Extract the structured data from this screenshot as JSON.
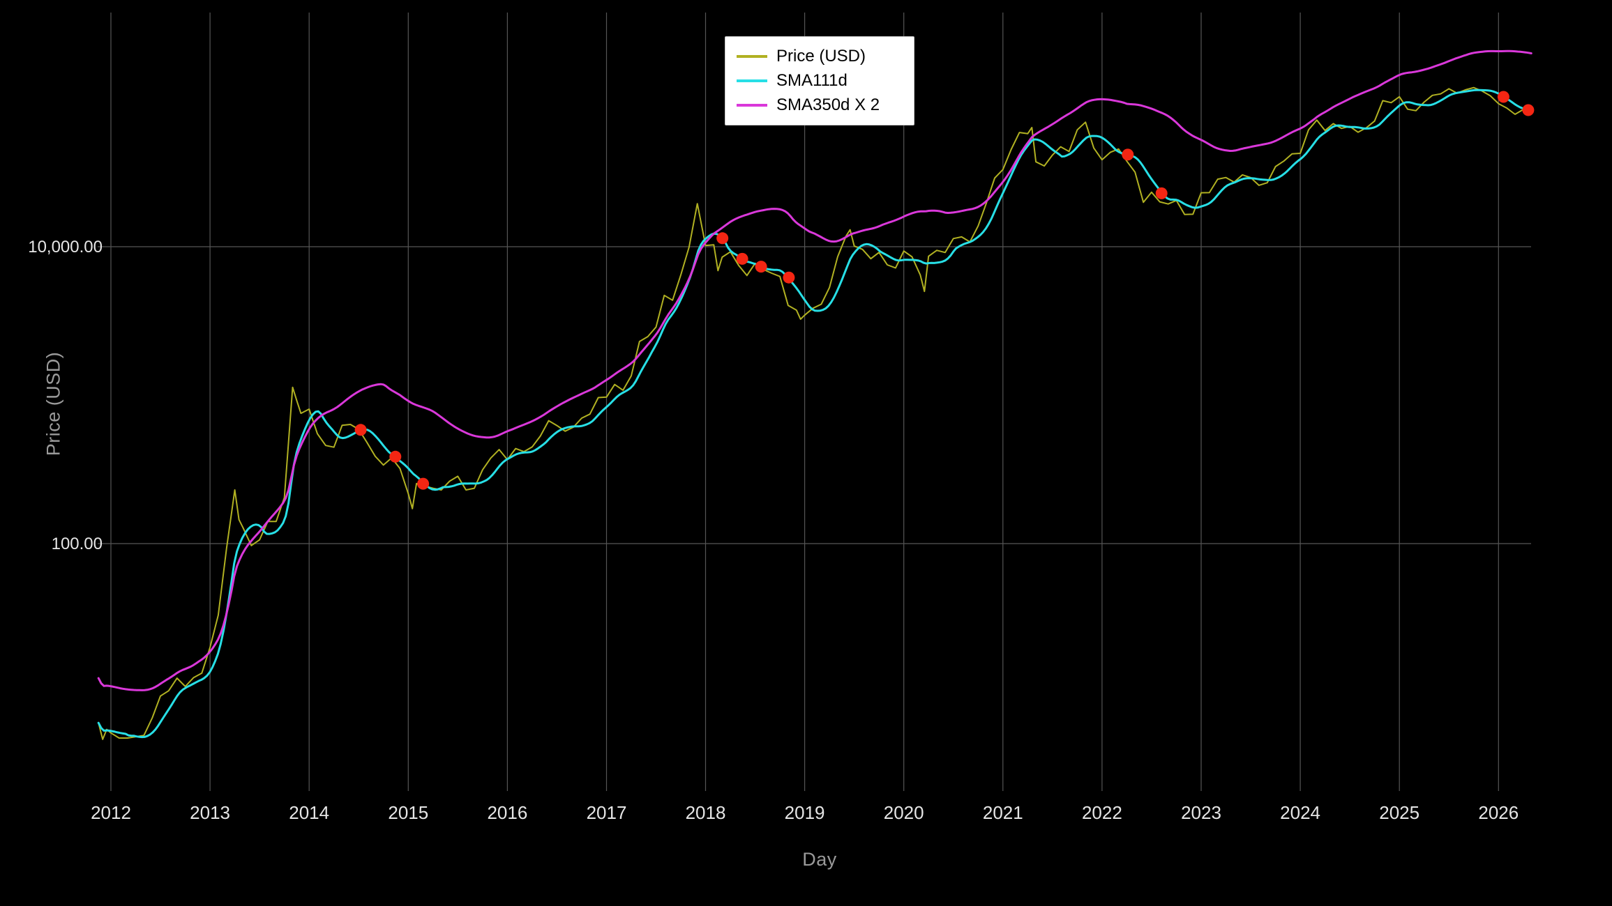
{
  "figure": {
    "background": "#000000"
  },
  "chart_data": {
    "type": "line",
    "title": "",
    "x_axis": {
      "label": "Day",
      "ticks": [
        2012,
        2013,
        2014,
        2015,
        2016,
        2017,
        2018,
        2019,
        2020,
        2021,
        2022,
        2023,
        2024,
        2025,
        2026
      ],
      "range": [
        2011.85,
        2026.5
      ]
    },
    "y_axis": {
      "label": "Price (USD)",
      "scale": "log",
      "ticks": [
        {
          "value": 10000,
          "label": "10,000.00"
        },
        {
          "value": 100,
          "label": "100.00"
        }
      ],
      "range": [
        2,
        400000
      ]
    },
    "style": {
      "grid_color": "#565656",
      "tick_color": "#e6e6e6",
      "axis_label_color": "#9a9a9a",
      "legend_background": "#ffffff",
      "legend_border": "#c9c9c9",
      "legend_text": "#000000",
      "grid": true,
      "legend_position": "top-center"
    },
    "series": [
      {
        "name": "Price (USD)",
        "color": "#b1b122",
        "x": [
          2011.875,
          2011.917,
          2011.958,
          2012,
          2012.083,
          2012.167,
          2012.25,
          2012.333,
          2012.417,
          2012.5,
          2012.583,
          2012.667,
          2012.75,
          2012.833,
          2012.917,
          2013,
          2013.083,
          2013.167,
          2013.25,
          2013.292,
          2013.333,
          2013.417,
          2013.5,
          2013.583,
          2013.667,
          2013.75,
          2013.833,
          2013.875,
          2013.917,
          2014,
          2014.083,
          2014.167,
          2014.25,
          2014.333,
          2014.417,
          2014.5,
          2014.583,
          2014.667,
          2014.75,
          2014.833,
          2014.917,
          2015,
          2015.042,
          2015.083,
          2015.167,
          2015.25,
          2015.333,
          2015.417,
          2015.5,
          2015.583,
          2015.667,
          2015.75,
          2015.833,
          2015.917,
          2016,
          2016.083,
          2016.167,
          2016.25,
          2016.333,
          2016.417,
          2016.5,
          2016.583,
          2016.667,
          2016.75,
          2016.833,
          2016.917,
          2017,
          2017.083,
          2017.167,
          2017.25,
          2017.333,
          2017.417,
          2017.5,
          2017.583,
          2017.667,
          2017.75,
          2017.833,
          2017.917,
          2017.958,
          2018,
          2018.083,
          2018.125,
          2018.167,
          2018.25,
          2018.333,
          2018.417,
          2018.5,
          2018.583,
          2018.667,
          2018.75,
          2018.833,
          2018.917,
          2018.958,
          2019,
          2019.083,
          2019.167,
          2019.25,
          2019.333,
          2019.417,
          2019.458,
          2019.5,
          2019.583,
          2019.667,
          2019.75,
          2019.833,
          2019.917,
          2020,
          2020.083,
          2020.167,
          2020.208,
          2020.25,
          2020.333,
          2020.417,
          2020.5,
          2020.583,
          2020.667,
          2020.75,
          2020.833,
          2020.917,
          2021,
          2021.083,
          2021.167,
          2021.25,
          2021.292,
          2021.333,
          2021.417,
          2021.5,
          2021.583,
          2021.667,
          2021.75,
          2021.833,
          2021.917,
          2022,
          2022.083,
          2022.167,
          2022.25,
          2022.333,
          2022.417,
          2022.5,
          2022.583,
          2022.667,
          2022.75,
          2022.833,
          2022.917,
          2023,
          2023.083,
          2023.167,
          2023.25,
          2023.333,
          2023.417,
          2023.5,
          2023.583,
          2023.667,
          2023.75,
          2023.833,
          2023.917,
          2024,
          2024.083,
          2024.167,
          2024.25,
          2024.333,
          2024.417,
          2024.5,
          2024.583,
          2024.667,
          2024.75,
          2024.833,
          2024.917,
          2025,
          2025.083,
          2025.167,
          2025.25,
          2025.333,
          2025.417,
          2025.5,
          2025.583,
          2025.667,
          2025.75,
          2025.833,
          2025.917,
          2026,
          2026.083,
          2026.167,
          2026.25,
          2026.333
        ],
        "y": [
          6.2,
          4.8,
          5.6,
          5.3,
          4.9,
          4.9,
          5.0,
          5.1,
          6.7,
          9.4,
          10.2,
          12.4,
          10.9,
          12.5,
          13.4,
          20,
          33,
          93,
          230,
          145,
          128,
          97,
          106,
          141,
          141,
          204,
          1130,
          920,
          754,
          806,
          550,
          458,
          446,
          627,
          635,
          589,
          481,
          387,
          338,
          378,
          320,
          217,
          172,
          254,
          244,
          236,
          230,
          263,
          284,
          230,
          236,
          314,
          377,
          430,
          368,
          437,
          416,
          448,
          531,
          673,
          624,
          572,
          609,
          700,
          745,
          963,
          970,
          1180,
          1080,
          1350,
          2300,
          2480,
          2875,
          4700,
          4360,
          6450,
          9900,
          19500,
          14100,
          10200,
          10300,
          6900,
          8500,
          9240,
          7490,
          6400,
          7730,
          7030,
          6630,
          6300,
          4020,
          3740,
          3250,
          3460,
          3850,
          4100,
          5320,
          8560,
          11800,
          13000,
          10100,
          9600,
          8300,
          9150,
          7550,
          7190,
          9350,
          8550,
          6440,
          5000,
          8620,
          9450,
          9140,
          11350,
          11650,
          10780,
          13800,
          19700,
          29000,
          33100,
          45200,
          58800,
          57750,
          63500,
          37300,
          35000,
          41500,
          47100,
          43800,
          61300,
          69000,
          46200,
          38500,
          43200,
          45500,
          37700,
          31800,
          19900,
          23300,
          20050,
          19400,
          20500,
          16500,
          16550,
          23100,
          23150,
          28500,
          29250,
          27200,
          30480,
          29230,
          25930,
          26970,
          34650,
          37700,
          42250,
          42580,
          61200,
          71300,
          60600,
          67500,
          62700,
          64600,
          59100,
          63300,
          70200,
          96400,
          93400,
          102400,
          84400,
          82500,
          94200,
          104600,
          107100,
          115800,
          108200,
          114000,
          118000,
          112000,
          104000,
          92000,
          86000,
          78000,
          84000,
          80000
        ]
      },
      {
        "name": "SMA111d",
        "color": "#27dfe6",
        "derived": {
          "type": "sma",
          "source": "Price (USD)",
          "window_days": 111,
          "multiplier": 1
        }
      },
      {
        "name": "SMA350d X 2",
        "color": "#da38da",
        "derived": {
          "type": "sma",
          "source": "Price (USD)",
          "window_days": 350,
          "multiplier": 2
        }
      }
    ],
    "markers": {
      "name": "signal-dots",
      "color": "#f42613",
      "on_series": "SMA111d",
      "x": [
        2014.52,
        2014.87,
        2015.15,
        2018.17,
        2018.37,
        2018.56,
        2018.84,
        2022.26,
        2022.6,
        2026.05,
        2026.3
      ],
      "y_approx": [
        560,
        430,
        260,
        11700,
        8960,
        7630,
        6750,
        43300,
        24000,
        102000,
        84000
      ]
    }
  }
}
